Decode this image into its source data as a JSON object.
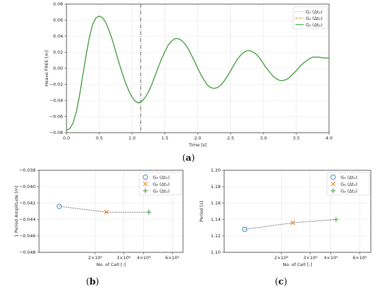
{
  "chart_data": [
    {
      "type": "line",
      "panel": "(a)",
      "panel_letter": "a",
      "xlabel": "Time [s]",
      "ylabel": "Heave FREE [m]",
      "xlim": [
        0.0,
        4.0
      ],
      "ylim": [
        -0.08,
        0.08
      ],
      "xticks": [
        0.0,
        0.5,
        1.0,
        1.5,
        2.0,
        2.5,
        3.0,
        3.5,
        4.0
      ],
      "xtick_labels": [
        "0.0",
        "0.5",
        "1.0",
        "1.5",
        "2.0",
        "2.5",
        "3.0",
        "3.5",
        "4.0"
      ],
      "yticks": [
        -0.08,
        -0.06,
        -0.04,
        -0.02,
        0.0,
        0.02,
        0.04,
        0.06,
        0.08
      ],
      "ytick_labels": [
        "−0.08",
        "−0.06",
        "−0.04",
        "−0.02",
        "0.00",
        "0.02",
        "0.04",
        "0.06",
        "0.08"
      ],
      "vline_x": 1.13,
      "legend_position": "top-right",
      "grid": true,
      "x": [
        0.0,
        0.05,
        0.1,
        0.15,
        0.2,
        0.25,
        0.3,
        0.35,
        0.4,
        0.45,
        0.5,
        0.55,
        0.6,
        0.65,
        0.7,
        0.75,
        0.8,
        0.85,
        0.9,
        0.95,
        1.0,
        1.05,
        1.1,
        1.15,
        1.2,
        1.25,
        1.3,
        1.35,
        1.4,
        1.45,
        1.5,
        1.55,
        1.6,
        1.65,
        1.7,
        1.75,
        1.8,
        1.85,
        1.9,
        1.95,
        2.0,
        2.05,
        2.1,
        2.15,
        2.2,
        2.25,
        2.3,
        2.35,
        2.4,
        2.45,
        2.5,
        2.55,
        2.6,
        2.65,
        2.7,
        2.75,
        2.8,
        2.85,
        2.9,
        2.95,
        3.0,
        3.05,
        3.1,
        3.15,
        3.2,
        3.25,
        3.3,
        3.35,
        3.4,
        3.45,
        3.5,
        3.55,
        3.6,
        3.65,
        3.7,
        3.75,
        3.8,
        3.85,
        3.9,
        3.95,
        4.0
      ],
      "series": [
        {
          "name": "G₁ (Δt₂)",
          "color": "#7fc6e8",
          "style": "dotted",
          "values": [
            -0.077,
            -0.075,
            -0.068,
            -0.054,
            -0.033,
            -0.008,
            0.017,
            0.039,
            0.055,
            0.063,
            0.065,
            0.063,
            0.057,
            0.047,
            0.035,
            0.021,
            0.007,
            -0.006,
            -0.018,
            -0.028,
            -0.036,
            -0.041,
            -0.043,
            -0.041,
            -0.036,
            -0.029,
            -0.02,
            -0.009,
            0.002,
            0.012,
            0.021,
            0.029,
            0.034,
            0.037,
            0.037,
            0.035,
            0.031,
            0.025,
            0.017,
            0.009,
            0.0,
            -0.008,
            -0.015,
            -0.021,
            -0.024,
            -0.025,
            -0.024,
            -0.021,
            -0.016,
            -0.01,
            -0.003,
            0.004,
            0.011,
            0.016,
            0.02,
            0.022,
            0.022,
            0.02,
            0.017,
            0.012,
            0.006,
            0.0,
            -0.005,
            -0.01,
            -0.013,
            -0.015,
            -0.015,
            -0.014,
            -0.011,
            -0.007,
            -0.003,
            0.002,
            0.006,
            0.009,
            0.012,
            0.014,
            0.014,
            0.014,
            0.013,
            0.013,
            0.013
          ]
        },
        {
          "name": "G₂ (Δt₂)",
          "color": "#f5913a",
          "style": "dashed",
          "values": [
            -0.077,
            -0.075,
            -0.068,
            -0.054,
            -0.033,
            -0.008,
            0.017,
            0.039,
            0.055,
            0.063,
            0.065,
            0.063,
            0.057,
            0.047,
            0.035,
            0.021,
            0.007,
            -0.006,
            -0.018,
            -0.028,
            -0.036,
            -0.041,
            -0.043,
            -0.041,
            -0.036,
            -0.029,
            -0.02,
            -0.009,
            0.002,
            0.012,
            0.021,
            0.029,
            0.034,
            0.037,
            0.037,
            0.035,
            0.031,
            0.025,
            0.017,
            0.009,
            0.0,
            -0.008,
            -0.015,
            -0.021,
            -0.024,
            -0.025,
            -0.024,
            -0.021,
            -0.016,
            -0.01,
            -0.003,
            0.004,
            0.011,
            0.016,
            0.02,
            0.022,
            0.022,
            0.02,
            0.017,
            0.012,
            0.006,
            0.0,
            -0.005,
            -0.01,
            -0.013,
            -0.015,
            -0.015,
            -0.014,
            -0.011,
            -0.007,
            -0.003,
            0.002,
            0.006,
            0.009,
            0.012,
            0.014,
            0.014,
            0.014,
            0.013,
            0.013,
            0.013
          ]
        },
        {
          "name": "G₃ (Δt₂)",
          "color": "#3c9b3c",
          "style": "solid",
          "values": [
            -0.077,
            -0.075,
            -0.068,
            -0.054,
            -0.033,
            -0.008,
            0.017,
            0.039,
            0.055,
            0.063,
            0.065,
            0.063,
            0.057,
            0.047,
            0.035,
            0.021,
            0.007,
            -0.006,
            -0.018,
            -0.028,
            -0.036,
            -0.041,
            -0.043,
            -0.041,
            -0.036,
            -0.029,
            -0.02,
            -0.009,
            0.002,
            0.012,
            0.021,
            0.029,
            0.034,
            0.037,
            0.037,
            0.035,
            0.031,
            0.025,
            0.017,
            0.009,
            0.0,
            -0.008,
            -0.015,
            -0.021,
            -0.024,
            -0.025,
            -0.024,
            -0.021,
            -0.016,
            -0.01,
            -0.003,
            0.004,
            0.011,
            0.016,
            0.02,
            0.022,
            0.022,
            0.02,
            0.017,
            0.012,
            0.006,
            0.0,
            -0.005,
            -0.01,
            -0.013,
            -0.015,
            -0.015,
            -0.014,
            -0.011,
            -0.007,
            -0.003,
            0.002,
            0.006,
            0.009,
            0.012,
            0.014,
            0.014,
            0.014,
            0.013,
            0.013,
            0.013
          ]
        }
      ]
    },
    {
      "type": "scatter",
      "panel": "(b)",
      "panel_letter": "b",
      "xlabel": "No. of Cell [-]",
      "ylabel": "1 Period Amplitude [m]",
      "x_scale": "log",
      "xlim": [
        900000,
        7000000
      ],
      "ylim": [
        -0.048,
        -0.038
      ],
      "xticks": [
        2000000,
        3000000,
        4000000,
        6000000
      ],
      "xtick_labels": [
        "2×10⁶",
        "3×10⁶",
        "4×10⁶",
        "6×10⁶"
      ],
      "yticks": [
        -0.048,
        -0.046,
        -0.044,
        -0.042,
        -0.04,
        -0.038
      ],
      "ytick_labels": [
        "−0.048",
        "−0.046",
        "−0.044",
        "−0.042",
        "−0.040",
        "−0.038"
      ],
      "legend_position": "top-right",
      "grid": true,
      "connector": "dotted",
      "series": [
        {
          "name": "G₁ (Δt₂)",
          "marker": "circle",
          "color": "#4f8fc0",
          "x": [
            1200000
          ],
          "y": [
            -0.0424
          ]
        },
        {
          "name": "G₂ (Δt₂)",
          "marker": "x",
          "color": "#f07f2a",
          "x": [
            2350000
          ],
          "y": [
            -0.0431
          ]
        },
        {
          "name": "G₃ (Δt₂)",
          "marker": "plus",
          "color": "#3c9b3c",
          "x": [
            4300000
          ],
          "y": [
            -0.0431
          ]
        }
      ]
    },
    {
      "type": "scatter",
      "panel": "(c)",
      "panel_letter": "c",
      "xlabel": "No. of Cell [-]",
      "ylabel": "Period [s]",
      "x_scale": "log",
      "xlim": [
        900000,
        7000000
      ],
      "ylim": [
        1.1,
        1.2
      ],
      "xticks": [
        2000000,
        3000000,
        4000000,
        6000000
      ],
      "xtick_labels": [
        "2×10⁶",
        "3×10⁶",
        "4×10⁶",
        "6×10⁶"
      ],
      "yticks": [
        1.1,
        1.12,
        1.14,
        1.16,
        1.18,
        1.2
      ],
      "ytick_labels": [
        "1.10",
        "1.12",
        "1.14",
        "1.16",
        "1.18",
        "1.20"
      ],
      "legend_position": "top-right",
      "grid": true,
      "connector": "dotted",
      "series": [
        {
          "name": "G₁ (Δt₂)",
          "marker": "circle",
          "color": "#4f8fc0",
          "x": [
            1200000
          ],
          "y": [
            1.128
          ]
        },
        {
          "name": "G₂ (Δt₂)",
          "marker": "x",
          "color": "#f07f2a",
          "x": [
            2350000
          ],
          "y": [
            1.136
          ]
        },
        {
          "name": "G₃ (Δt₂)",
          "marker": "plus",
          "color": "#3c9b3c",
          "x": [
            4300000
          ],
          "y": [
            1.14
          ]
        }
      ]
    }
  ]
}
